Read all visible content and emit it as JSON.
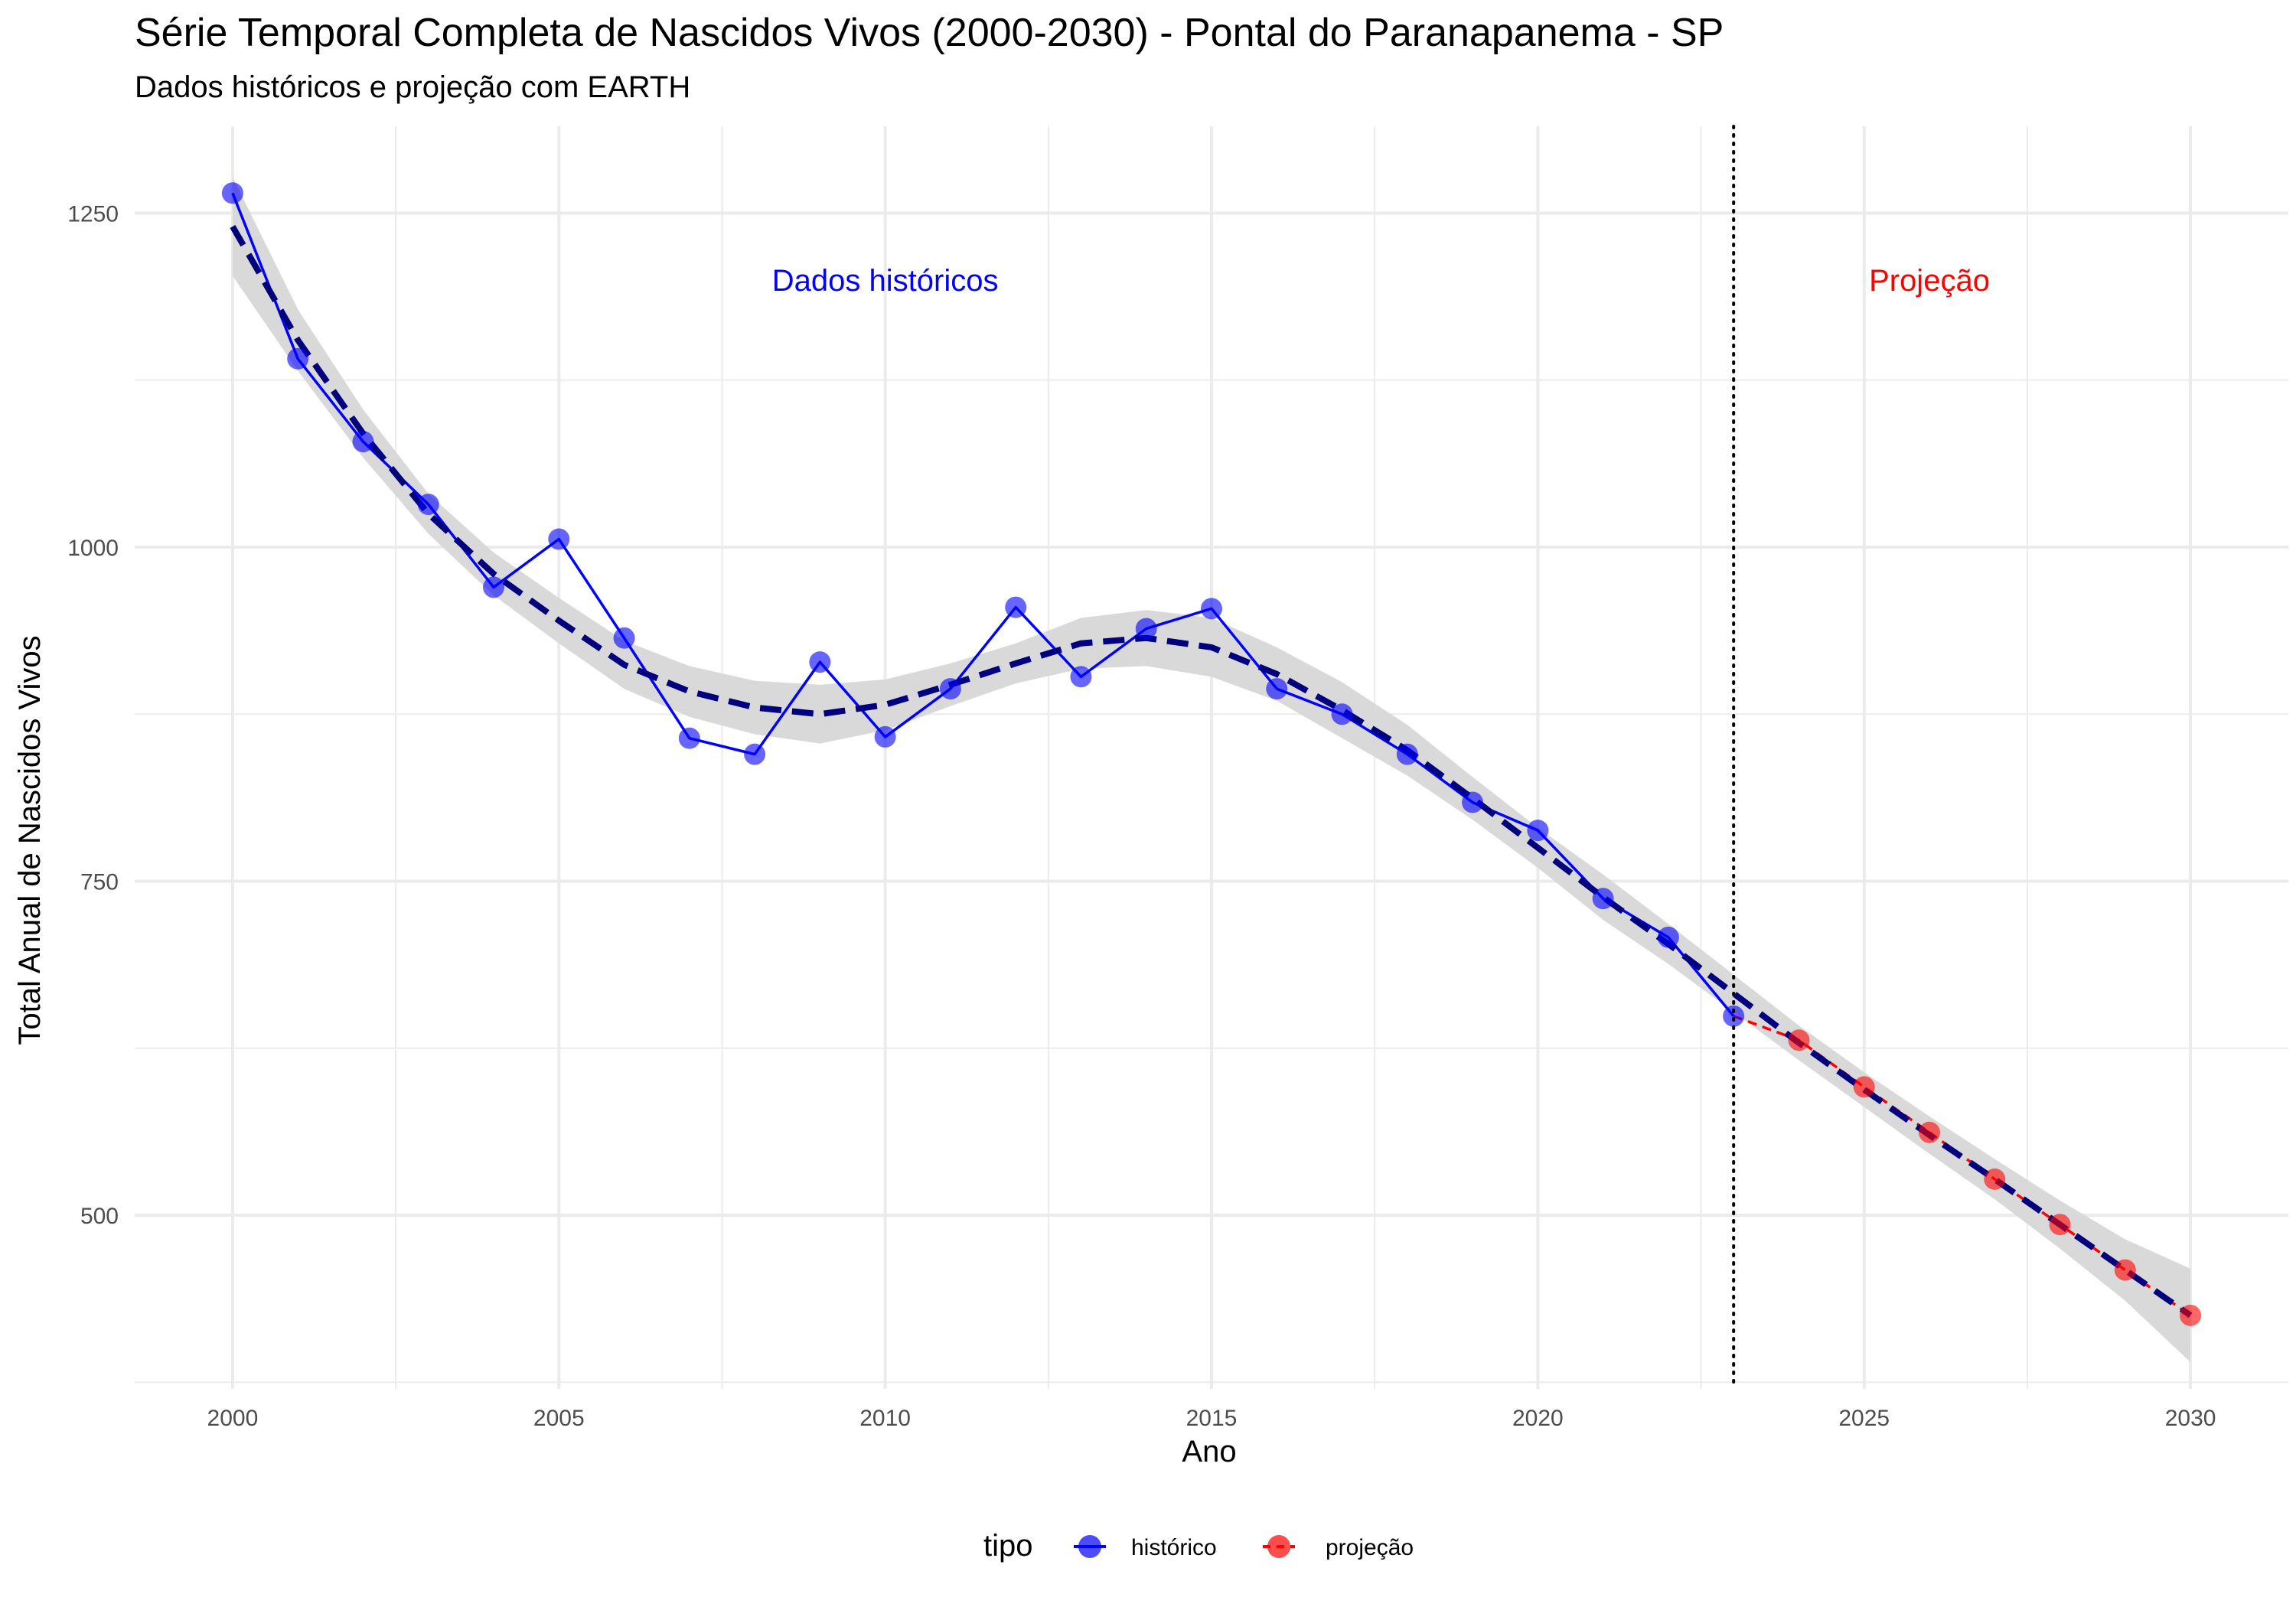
{
  "chart_data": {
    "type": "line",
    "title": "Série Temporal Completa de Nascidos Vivos (2000-2030) -  Pontal do Paranapanema - SP",
    "subtitle": "Dados históricos e projeção com EARTH",
    "xlabel": "Ano",
    "ylabel": "Total Anual de Nascidos Vivos",
    "xlim": [
      1998.5,
      2031.5
    ],
    "ylim": [
      370,
      1315
    ],
    "x_ticks": [
      2000,
      2005,
      2010,
      2015,
      2020,
      2025,
      2030
    ],
    "x_tick_labels": [
      "2000",
      "2005",
      "2010",
      "2015",
      "2020",
      "2025",
      "2030"
    ],
    "y_ticks": [
      500,
      750,
      1000,
      1250
    ],
    "y_tick_labels": [
      "500",
      "750",
      "1000",
      "1250"
    ],
    "grid": true,
    "legend_position": "bottom",
    "legend_title": "tipo",
    "series": [
      {
        "name": "histórico",
        "color": "#0000ff",
        "line_style": "solid",
        "x": [
          2000,
          2001,
          2002,
          2003,
          2004,
          2005,
          2006,
          2007,
          2008,
          2009,
          2010,
          2011,
          2012,
          2013,
          2014,
          2015,
          2016,
          2017,
          2018,
          2019,
          2020,
          2021,
          2022,
          2023
        ],
        "values": [
          1265,
          1141,
          1079,
          1032,
          970,
          1006,
          932,
          857,
          845,
          914,
          858,
          894,
          955,
          903,
          939,
          954,
          894,
          875,
          845,
          809,
          788,
          737,
          708,
          649
        ]
      },
      {
        "name": "projeção",
        "color": "#ff0000",
        "line_style": "dashed",
        "x": [
          2023,
          2024,
          2025,
          2026,
          2027,
          2028,
          2029,
          2030
        ],
        "values": [
          649,
          631,
          596,
          562,
          527,
          493,
          459,
          425
        ]
      }
    ],
    "trend": {
      "color": "#00007f",
      "line_style": "dashed",
      "x": [
        2000,
        2001,
        2002,
        2003,
        2004,
        2005,
        2006,
        2007,
        2008,
        2009,
        2010,
        2011,
        2012,
        2013,
        2014,
        2015,
        2016,
        2017,
        2018,
        2019,
        2020,
        2021,
        2022,
        2023,
        2024,
        2025,
        2026,
        2027,
        2028,
        2029,
        2030
      ],
      "values": [
        1240,
        1155,
        1085,
        1025,
        980,
        945,
        912,
        892,
        880,
        875,
        882,
        897,
        913,
        928,
        932,
        925,
        905,
        878,
        848,
        812,
        775,
        738,
        703,
        666,
        629,
        594,
        560,
        527,
        493,
        459,
        425
      ],
      "band_lower": [
        1203,
        1132,
        1067,
        1010,
        964,
        928,
        894,
        873,
        860,
        853,
        863,
        881,
        898,
        909,
        911,
        903,
        885,
        857,
        829,
        796,
        760,
        721,
        688,
        652,
        616,
        581,
        546,
        512,
        475,
        436,
        390
      ],
      "band_upper": [
        1277,
        1178,
        1103,
        1040,
        996,
        962,
        930,
        911,
        900,
        897,
        901,
        913,
        928,
        947,
        953,
        947,
        925,
        899,
        867,
        828,
        790,
        755,
        718,
        680,
        642,
        607,
        574,
        542,
        511,
        482,
        460
      ],
      "band_color": "#d9d9d9"
    },
    "vline": {
      "x": 2023,
      "style": "dotted",
      "color": "#000000"
    },
    "annotations": [
      {
        "text": "Dados históricos",
        "x": 2010,
        "y": 1200,
        "color": "#0000ff"
      },
      {
        "text": "Projeção",
        "x": 2026,
        "y": 1200,
        "color": "#ff0000"
      }
    ]
  }
}
